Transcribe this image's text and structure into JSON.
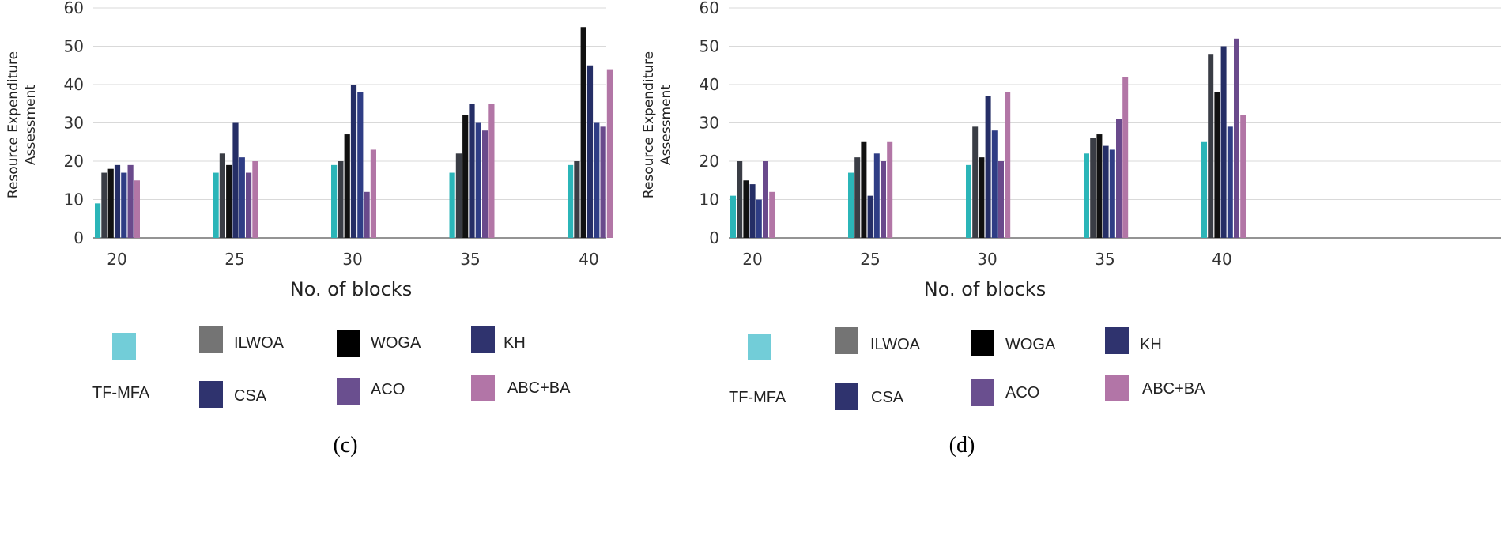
{
  "chart_data": [
    {
      "type": "bar",
      "panel_label": "(c)",
      "title": "",
      "xlabel": "No. of blocks",
      "ylabel_lines": [
        "Resource Expenditure",
        "Assessment"
      ],
      "categories": [
        "20",
        "25",
        "30",
        "35",
        "40"
      ],
      "ylim": [
        0,
        60
      ],
      "yticks": [
        0,
        10,
        20,
        30,
        40,
        50,
        60
      ],
      "grid": true,
      "legend_position": "bottom",
      "series": [
        {
          "name": "TF-MFA",
          "values": [
            9,
            17,
            19,
            17,
            19
          ]
        },
        {
          "name": "ILWOA",
          "values": [
            17,
            22,
            20,
            22,
            20
          ]
        },
        {
          "name": "WOGA",
          "values": [
            18,
            19,
            27,
            32,
            55
          ]
        },
        {
          "name": "KH",
          "values": [
            19,
            30,
            40,
            35,
            45
          ]
        },
        {
          "name": "CSA",
          "values": [
            17,
            21,
            38,
            30,
            30
          ]
        },
        {
          "name": "ACO",
          "values": [
            19,
            17,
            12,
            28,
            29
          ]
        },
        {
          "name": "ABC+BA",
          "values": [
            15,
            20,
            23,
            35,
            44
          ]
        }
      ]
    },
    {
      "type": "bar",
      "panel_label": "(d)",
      "title": "",
      "xlabel": "No. of blocks",
      "ylabel_lines": [
        "Resource Expenditure",
        "Assessment"
      ],
      "categories": [
        "20",
        "25",
        "30",
        "35",
        "40"
      ],
      "ylim": [
        0,
        60
      ],
      "yticks": [
        0,
        10,
        20,
        30,
        40,
        50,
        60
      ],
      "grid": true,
      "legend_position": "bottom",
      "series": [
        {
          "name": "TF-MFA",
          "values": [
            11,
            17,
            19,
            22,
            25
          ]
        },
        {
          "name": "ILWOA",
          "values": [
            20,
            21,
            29,
            26,
            48
          ]
        },
        {
          "name": "WOGA",
          "values": [
            15,
            25,
            21,
            27,
            38
          ]
        },
        {
          "name": "KH",
          "values": [
            14,
            11,
            37,
            24,
            50
          ]
        },
        {
          "name": "CSA",
          "values": [
            10,
            22,
            28,
            23,
            29
          ]
        },
        {
          "name": "ACO",
          "values": [
            20,
            20,
            20,
            31,
            52
          ]
        },
        {
          "name": "ABC+BA",
          "values": [
            12,
            25,
            38,
            42,
            32
          ]
        }
      ]
    }
  ],
  "series_colors": {
    "TF-MFA": "#2bb5b8",
    "ILWOA": "#3a3d45",
    "WOGA": "#111111",
    "KH": "#252e66",
    "CSA": "#2f3d85",
    "ACO": "#6a4a8c",
    "ABC+BA": "#b276a6"
  },
  "legend_colors": {
    "TF-MFA": "#72cdd8",
    "ILWOA": "#747474",
    "WOGA": "#000000",
    "KH": "#2f336e",
    "CSA": "#2f336e",
    "ACO": "#6a4f8f",
    "ABC+BA": "#b275a7"
  },
  "gridline_color": "#d9d9d9",
  "axis_color": "#555555"
}
